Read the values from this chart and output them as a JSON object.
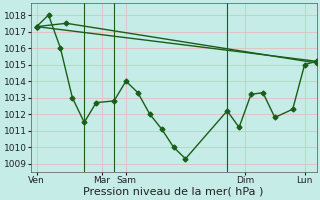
{
  "background_color": "#c5ece6",
  "grid_color": "#e8b4b4",
  "line_color": "#1a5e1a",
  "marker": "D",
  "markersize": 2.5,
  "linewidth": 1.0,
  "xlabel": "Pression niveau de la mer( hPa )",
  "xlabel_fontsize": 8,
  "tick_fontsize": 6.5,
  "ylim": [
    1008.5,
    1018.7
  ],
  "yticks": [
    1009,
    1010,
    1011,
    1012,
    1013,
    1014,
    1015,
    1016,
    1017,
    1018
  ],
  "xlim": [
    0,
    24
  ],
  "xtick_positions": [
    0.5,
    6,
    8,
    18,
    23
  ],
  "xtick_labels": [
    "Ven",
    "Mar",
    "Sam",
    "Dim",
    "Lun"
  ],
  "vlines_x": [
    4.5,
    7,
    16.5
  ],
  "vline_color": "#1a5e1a",
  "vline_lw": 0.8,
  "series": [
    {
      "x": [
        0.5,
        24
      ],
      "y": [
        1017.3,
        1015.2
      ]
    },
    {
      "x": [
        0.5,
        3,
        24
      ],
      "y": [
        1017.3,
        1017.5,
        1015.1
      ]
    },
    {
      "x": [
        0.5,
        1.5,
        2.5,
        3.5,
        4.5,
        5.5,
        7,
        8,
        9,
        10,
        11,
        12,
        13,
        16.5,
        17.5,
        18.5,
        19.5,
        20.5,
        22,
        23,
        24
      ],
      "y": [
        1017.3,
        1018.0,
        1016.0,
        1013.0,
        1011.5,
        1012.7,
        1012.8,
        1014.0,
        1013.3,
        1012.0,
        1011.1,
        1010.0,
        1009.3,
        1012.2,
        1011.2,
        1013.2,
        1013.3,
        1011.8,
        1012.3,
        1015.0,
        1015.2
      ]
    }
  ]
}
